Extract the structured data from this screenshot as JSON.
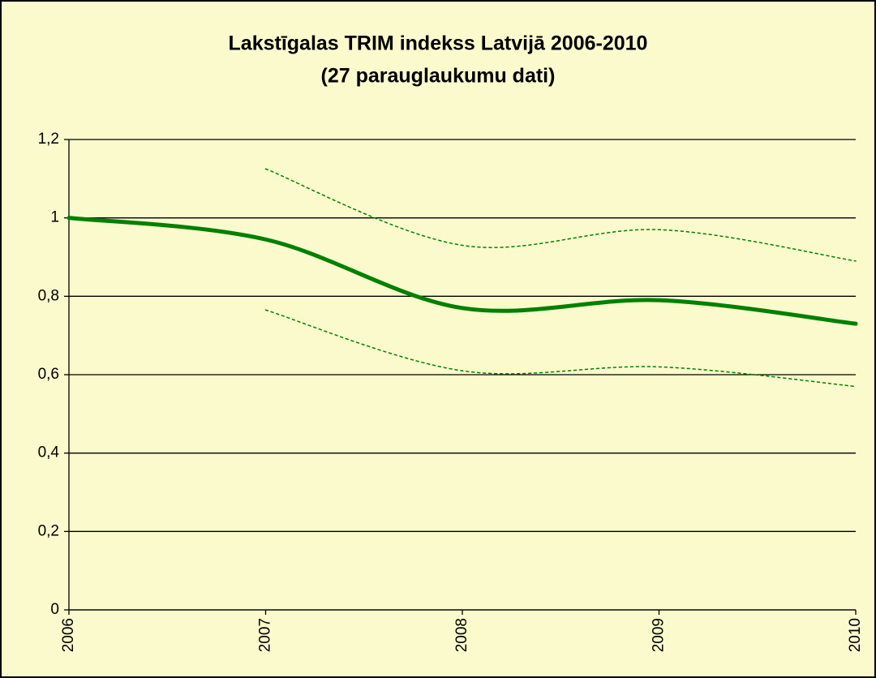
{
  "chart_data": {
    "type": "line",
    "title": "Lakstīgalas TRIM indekss Latvijā 2006-2010",
    "subtitle": "(27 parauglaukumu dati)",
    "x": [
      2006,
      2007,
      2008,
      2009,
      2010
    ],
    "series": [
      {
        "color": "#008000",
        "style": "solid",
        "values": [
          1.0,
          0.945,
          0.77,
          0.79,
          0.73
        ]
      },
      {
        "color": "#008000",
        "style": "dotted",
        "values": [
          null,
          1.125,
          0.93,
          0.97,
          0.89
        ]
      },
      {
        "color": "#008000",
        "style": "dotted",
        "values": [
          null,
          0.765,
          0.61,
          0.62,
          0.57
        ]
      }
    ],
    "xlim": [
      2006,
      2010
    ],
    "xticks": [
      2006,
      2007,
      2008,
      2009,
      2010
    ],
    "ylim": [
      0,
      1.2
    ],
    "yticks": [
      0,
      {
        "value": 0.2,
        "label": "0,2"
      },
      {
        "value": 0.4,
        "label": "0,4"
      },
      {
        "value": 0.6,
        "label": "0,6"
      },
      {
        "value": 0.8,
        "label": "0,8"
      },
      1,
      {
        "value": 1.2,
        "label": "1,2"
      }
    ],
    "grid": true
  }
}
